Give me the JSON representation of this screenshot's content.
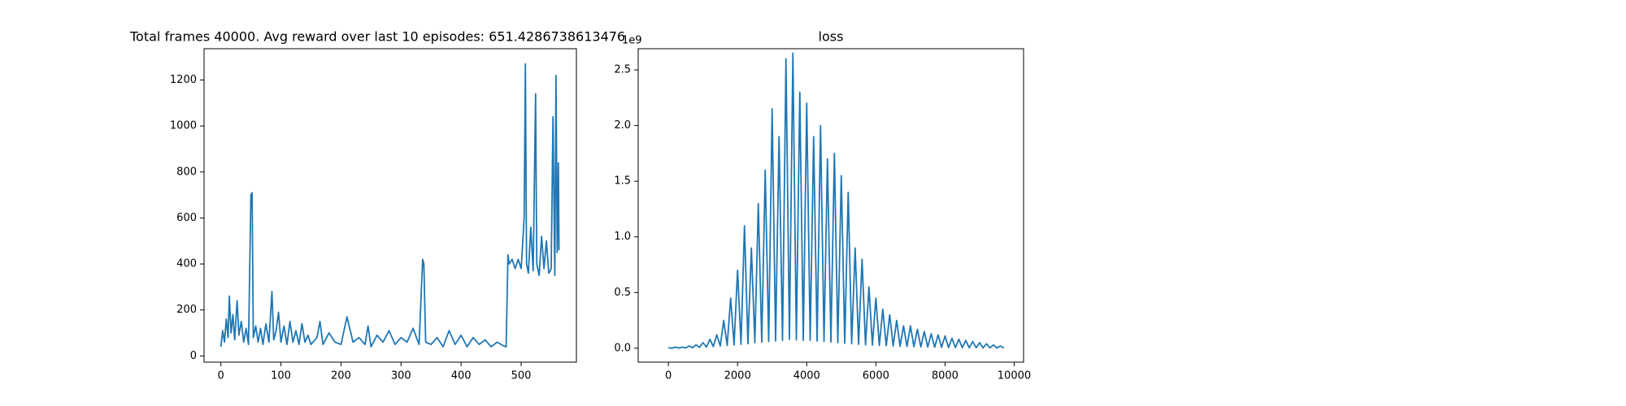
{
  "chart_data": [
    {
      "type": "line",
      "title": "Total frames 40000. Avg reward over last 10 episodes: 651.4286738613476",
      "xlim": [
        -28,
        592
      ],
      "ylim": [
        -27,
        1336
      ],
      "xticks": [
        0,
        100,
        200,
        300,
        400,
        500
      ],
      "yticks": [
        0,
        200,
        400,
        600,
        800,
        1000,
        1200
      ],
      "series": [
        {
          "color": "#1f77b4",
          "x": [
            0,
            3,
            6,
            9,
            12,
            14,
            17,
            20,
            23,
            27,
            30,
            34,
            38,
            42,
            46,
            50,
            52,
            54,
            58,
            62,
            66,
            70,
            75,
            80,
            85,
            88,
            92,
            96,
            100,
            105,
            110,
            115,
            120,
            125,
            130,
            135,
            140,
            145,
            150,
            160,
            165,
            170,
            180,
            190,
            200,
            210,
            220,
            230,
            240,
            245,
            250,
            260,
            270,
            280,
            290,
            300,
            310,
            320,
            330,
            336,
            338,
            341,
            350,
            360,
            370,
            380,
            390,
            400,
            410,
            420,
            430,
            440,
            450,
            460,
            470,
            475,
            477,
            478,
            480,
            485,
            490,
            495,
            500,
            505,
            507,
            509,
            512,
            516,
            520,
            524,
            526,
            530,
            534,
            538,
            542,
            546,
            550,
            553,
            556,
            558,
            560,
            562,
            563
          ],
          "values": [
            40,
            110,
            60,
            160,
            80,
            260,
            100,
            180,
            70,
            240,
            90,
            150,
            60,
            120,
            50,
            700,
            710,
            80,
            130,
            60,
            120,
            50,
            140,
            60,
            280,
            70,
            110,
            190,
            60,
            130,
            50,
            150,
            60,
            110,
            50,
            140,
            60,
            90,
            50,
            80,
            150,
            50,
            100,
            60,
            50,
            170,
            60,
            80,
            50,
            130,
            40,
            90,
            60,
            110,
            50,
            80,
            60,
            120,
            50,
            420,
            400,
            60,
            50,
            80,
            40,
            110,
            50,
            90,
            40,
            80,
            50,
            70,
            40,
            60,
            45,
            40,
            300,
            440,
            400,
            420,
            380,
            420,
            380,
            600,
            1270,
            400,
            360,
            560,
            370,
            1140,
            400,
            350,
            520,
            380,
            500,
            360,
            380,
            1040,
            350,
            1220,
            450,
            840,
            460
          ]
        }
      ]
    },
    {
      "type": "line",
      "title": "loss",
      "y_offset_label": "1e9",
      "xlim": [
        -873,
        10271
      ],
      "ylim": [
        -0.125,
        2.69
      ],
      "xticks": [
        0,
        2000,
        4000,
        6000,
        8000,
        10000
      ],
      "yticks": [
        {
          "value": 0,
          "label": "0.0"
        },
        0.5,
        {
          "value": 1,
          "label": "1.0"
        },
        1.5,
        {
          "value": 2,
          "label": "2.0"
        },
        2.5
      ],
      "series": [
        {
          "color": "#1f77b4",
          "x": [
            0,
            100,
            200,
            300,
            400,
            500,
            600,
            700,
            800,
            900,
            1000,
            1100,
            1200,
            1300,
            1400,
            1500,
            1600,
            1700,
            1800,
            1900,
            2000,
            2100,
            2200,
            2300,
            2400,
            2500,
            2600,
            2700,
            2800,
            2900,
            3000,
            3100,
            3200,
            3300,
            3400,
            3500,
            3600,
            3700,
            3800,
            3900,
            4000,
            4100,
            4200,
            4300,
            4400,
            4500,
            4600,
            4700,
            4800,
            4900,
            5000,
            5100,
            5200,
            5300,
            5400,
            5500,
            5600,
            5700,
            5800,
            5900,
            6000,
            6100,
            6200,
            6300,
            6400,
            6500,
            6600,
            6700,
            6800,
            6900,
            7000,
            7100,
            7200,
            7300,
            7400,
            7500,
            7600,
            7700,
            7800,
            7900,
            8000,
            8100,
            8200,
            8300,
            8400,
            8500,
            8600,
            8700,
            8800,
            8900,
            9000,
            9100,
            9200,
            9300,
            9400,
            9500,
            9600,
            9700
          ],
          "values": [
            0.005,
            0,
            0.01,
            0.002,
            0.01,
            0.003,
            0.02,
            0.005,
            0.03,
            0.008,
            0.05,
            0.01,
            0.08,
            0.015,
            0.12,
            0.02,
            0.25,
            0.025,
            0.45,
            0.03,
            0.7,
            0.035,
            1.1,
            0.04,
            0.9,
            0.05,
            1.3,
            0.055,
            1.6,
            0.06,
            2.15,
            0.065,
            1.9,
            0.07,
            2.6,
            0.08,
            2.65,
            0.075,
            2.3,
            0.07,
            2.2,
            0.07,
            1.9,
            0.065,
            2.0,
            0.06,
            1.7,
            0.055,
            1.75,
            0.05,
            1.55,
            0.045,
            1.4,
            0.04,
            0.9,
            0.035,
            0.8,
            0.03,
            0.55,
            0.028,
            0.45,
            0.025,
            0.35,
            0.022,
            0.3,
            0.02,
            0.25,
            0.018,
            0.2,
            0.016,
            0.2,
            0.014,
            0.17,
            0.012,
            0.15,
            0.01,
            0.13,
            0.009,
            0.12,
            0.008,
            0.11,
            0.007,
            0.09,
            0.006,
            0.08,
            0.005,
            0.07,
            0.004,
            0.06,
            0.004,
            0.05,
            0.003,
            0.04,
            0.003,
            0.03,
            0.002,
            0.02,
            0.002
          ]
        }
      ]
    }
  ]
}
